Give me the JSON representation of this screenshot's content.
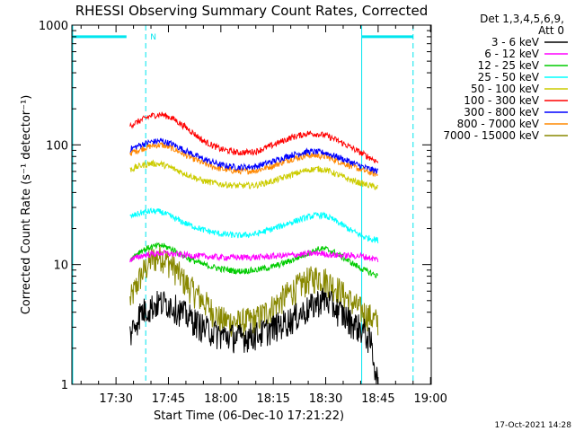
{
  "chart_data": {
    "type": "line",
    "title": "RHESSI Observing Summary Count Rates, Corrected",
    "xlabel": "Start Time (06-Dec-10 17:21:22)",
    "ylabel": "Corrected Count Rate (s⁻¹ detector⁻¹)",
    "y_scale": "log",
    "ylim": [
      1,
      1000
    ],
    "xlim_minutes": [
      17.37,
      120.2
    ],
    "x_ticks": [
      {
        "label": "17:30",
        "minute": 30
      },
      {
        "label": "17:45",
        "minute": 45
      },
      {
        "label": "18:00",
        "minute": 60
      },
      {
        "label": "18:15",
        "minute": 75
      },
      {
        "label": "18:30",
        "minute": 90
      },
      {
        "label": "18:45",
        "minute": 105
      },
      {
        "label": "19:00",
        "minute": 120
      }
    ],
    "y_ticks": [
      {
        "label": "1",
        "value": 1
      },
      {
        "label": "10",
        "value": 10
      },
      {
        "label": "100",
        "value": 100
      },
      {
        "label": "1000",
        "value": 1000
      }
    ],
    "legend_header": [
      "Det 1,3,4,5,6,9,",
      "Att 0"
    ],
    "series": [
      {
        "name": "3 - 6 keV",
        "color": "#000000",
        "knots": [
          [
            34,
            2.6
          ],
          [
            37,
            4
          ],
          [
            42,
            4.8
          ],
          [
            45,
            4.8
          ],
          [
            48,
            4.2
          ],
          [
            52,
            3.5
          ],
          [
            55,
            3
          ],
          [
            60,
            2.6
          ],
          [
            65,
            2.5
          ],
          [
            70,
            2.6
          ],
          [
            75,
            3
          ],
          [
            80,
            3.5
          ],
          [
            85,
            4.3
          ],
          [
            88,
            5
          ],
          [
            90,
            5.2
          ],
          [
            93,
            4.3
          ],
          [
            97,
            3.4
          ],
          [
            101,
            2.8
          ],
          [
            103,
            2.2
          ],
          [
            105,
            1
          ]
        ]
      },
      {
        "name": "6 - 12 keV",
        "color": "#ff00ff",
        "knots": [
          [
            34,
            11
          ],
          [
            38,
            12
          ],
          [
            43,
            12.5
          ],
          [
            50,
            12
          ],
          [
            60,
            11.5
          ],
          [
            70,
            11.5
          ],
          [
            80,
            12
          ],
          [
            88,
            12.5
          ],
          [
            92,
            12
          ],
          [
            100,
            11.8
          ],
          [
            105,
            11
          ]
        ]
      },
      {
        "name": "12 - 25 keV",
        "color": "#00cc00",
        "knots": [
          [
            34,
            11
          ],
          [
            37,
            13
          ],
          [
            40,
            14
          ],
          [
            43,
            14.5
          ],
          [
            46,
            13.5
          ],
          [
            50,
            11.5
          ],
          [
            55,
            10
          ],
          [
            60,
            9.2
          ],
          [
            65,
            8.8
          ],
          [
            70,
            9
          ],
          [
            75,
            9.6
          ],
          [
            80,
            10.8
          ],
          [
            85,
            12.5
          ],
          [
            88,
            13.5
          ],
          [
            90,
            13.5
          ],
          [
            93,
            12.5
          ],
          [
            97,
            10.5
          ],
          [
            101,
            9
          ],
          [
            105,
            8
          ]
        ]
      },
      {
        "name": "25 - 50 keV",
        "color": "#00ffff",
        "knots": [
          [
            34,
            25
          ],
          [
            37,
            27
          ],
          [
            40,
            28
          ],
          [
            43,
            27.5
          ],
          [
            46,
            25
          ],
          [
            50,
            22
          ],
          [
            55,
            19.5
          ],
          [
            60,
            18
          ],
          [
            65,
            17.5
          ],
          [
            70,
            18
          ],
          [
            75,
            20
          ],
          [
            80,
            22.5
          ],
          [
            85,
            25
          ],
          [
            88,
            26
          ],
          [
            90,
            25.5
          ],
          [
            93,
            23
          ],
          [
            97,
            19.5
          ],
          [
            101,
            17
          ],
          [
            105,
            16
          ]
        ]
      },
      {
        "name": "50 - 100 keV",
        "color": "#cccc00",
        "knots": [
          [
            34,
            62
          ],
          [
            37,
            67
          ],
          [
            40,
            70
          ],
          [
            43,
            69
          ],
          [
            46,
            64
          ],
          [
            50,
            57
          ],
          [
            55,
            50
          ],
          [
            60,
            47
          ],
          [
            65,
            45.5
          ],
          [
            70,
            46
          ],
          [
            75,
            50
          ],
          [
            80,
            56
          ],
          [
            85,
            62
          ],
          [
            88,
            63
          ],
          [
            90,
            62
          ],
          [
            93,
            57
          ],
          [
            97,
            51
          ],
          [
            101,
            47
          ],
          [
            105,
            44
          ]
        ]
      },
      {
        "name": "100 - 300 keV",
        "color": "#ff0000",
        "knots": [
          [
            34,
            145
          ],
          [
            37,
            160
          ],
          [
            40,
            175
          ],
          [
            43,
            180
          ],
          [
            46,
            168
          ],
          [
            50,
            140
          ],
          [
            55,
            108
          ],
          [
            60,
            92
          ],
          [
            65,
            86
          ],
          [
            70,
            88
          ],
          [
            75,
            100
          ],
          [
            80,
            115
          ],
          [
            85,
            125
          ],
          [
            88,
            123
          ],
          [
            90,
            120
          ],
          [
            93,
            110
          ],
          [
            97,
            96
          ],
          [
            101,
            83
          ],
          [
            105,
            72
          ]
        ]
      },
      {
        "name": "300 - 800 keV",
        "color": "#0000ff",
        "knots": [
          [
            34,
            92
          ],
          [
            37,
            100
          ],
          [
            40,
            106
          ],
          [
            43,
            108
          ],
          [
            46,
            102
          ],
          [
            50,
            89
          ],
          [
            55,
            76
          ],
          [
            60,
            68
          ],
          [
            65,
            65
          ],
          [
            70,
            66
          ],
          [
            75,
            73
          ],
          [
            80,
            82
          ],
          [
            85,
            88
          ],
          [
            88,
            87
          ],
          [
            90,
            86
          ],
          [
            93,
            80
          ],
          [
            97,
            72
          ],
          [
            101,
            65
          ],
          [
            105,
            60
          ]
        ]
      },
      {
        "name": "800 - 7000 keV",
        "color": "#ff8800",
        "knots": [
          [
            34,
            85
          ],
          [
            37,
            92
          ],
          [
            40,
            98
          ],
          [
            43,
            100
          ],
          [
            46,
            94
          ],
          [
            50,
            82
          ],
          [
            55,
            70
          ],
          [
            60,
            63
          ],
          [
            65,
            60
          ],
          [
            70,
            61
          ],
          [
            75,
            67
          ],
          [
            80,
            76
          ],
          [
            85,
            82
          ],
          [
            88,
            81
          ],
          [
            90,
            80
          ],
          [
            93,
            74
          ],
          [
            97,
            67
          ],
          [
            101,
            61
          ],
          [
            105,
            56
          ]
        ]
      },
      {
        "name": "7000 - 15000 keV",
        "color": "#888800",
        "knots": [
          [
            34,
            5
          ],
          [
            37,
            8
          ],
          [
            40,
            11
          ],
          [
            43,
            12
          ],
          [
            46,
            10
          ],
          [
            50,
            7
          ],
          [
            55,
            5
          ],
          [
            58,
            4
          ],
          [
            60,
            3.5
          ],
          [
            65,
            3.3
          ],
          [
            70,
            3.5
          ],
          [
            75,
            4.5
          ],
          [
            80,
            6
          ],
          [
            85,
            7.5
          ],
          [
            88,
            8
          ],
          [
            90,
            7.5
          ],
          [
            93,
            6.5
          ],
          [
            97,
            5
          ],
          [
            101,
            4
          ],
          [
            105,
            3.3
          ]
        ]
      }
    ],
    "annotations": {
      "saa_label": "N",
      "saa_bar_color": "#00e5ee",
      "saa_bars_at_value": 800,
      "saa_bars_minutes": [
        [
          17.37,
          33
        ],
        [
          100.3,
          115
        ]
      ],
      "night_dashed_minutes": [
        38.5,
        115
      ],
      "night_solid_minutes": [
        17.6,
        100.3
      ]
    },
    "timestamp": "17-Oct-2021 14:28"
  }
}
